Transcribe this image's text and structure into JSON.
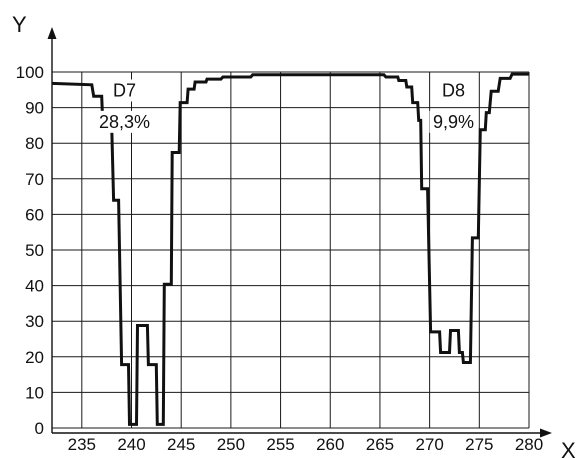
{
  "chart_data": {
    "type": "line",
    "xlabel": "X",
    "ylabel": "Y",
    "xlim": [
      232,
      280
    ],
    "ylim": [
      0,
      100
    ],
    "x_ticks": [
      235,
      240,
      245,
      250,
      255,
      260,
      265,
      270,
      275,
      280
    ],
    "y_ticks": [
      0,
      10,
      20,
      30,
      40,
      50,
      60,
      70,
      80,
      90,
      100
    ],
    "grid": true,
    "line_color": "#111111",
    "series": [
      {
        "points": [
          [
            232,
            96.8
          ],
          [
            236,
            96.4
          ],
          [
            236.2,
            93.2
          ],
          [
            237,
            93.2
          ],
          [
            237.1,
            86
          ],
          [
            238,
            86
          ],
          [
            238.2,
            64
          ],
          [
            238.7,
            64
          ],
          [
            239,
            17.8
          ],
          [
            239.7,
            17.8
          ],
          [
            239.8,
            1
          ],
          [
            240.5,
            1
          ],
          [
            240.6,
            28.8
          ],
          [
            241.6,
            28.8
          ],
          [
            241.7,
            17.8
          ],
          [
            242.5,
            17.8
          ],
          [
            242.6,
            1
          ],
          [
            243.2,
            1
          ],
          [
            243.3,
            40.4
          ],
          [
            244,
            40.4
          ],
          [
            244.1,
            77.4
          ],
          [
            244.8,
            77.4
          ],
          [
            244.9,
            91.4
          ],
          [
            245.6,
            91.4
          ],
          [
            245.7,
            95.2
          ],
          [
            246.3,
            95.2
          ],
          [
            246.4,
            97.2
          ],
          [
            247.5,
            97.2
          ],
          [
            247.6,
            98
          ],
          [
            249,
            98
          ],
          [
            249.2,
            98.6
          ],
          [
            252,
            98.6
          ],
          [
            252.2,
            99.2
          ],
          [
            265.4,
            99.2
          ],
          [
            265.6,
            98.6
          ],
          [
            266.8,
            98.6
          ],
          [
            266.9,
            97.6
          ],
          [
            267.6,
            97.6
          ],
          [
            267.7,
            95.8
          ],
          [
            268.2,
            95.8
          ],
          [
            268.3,
            91.4
          ],
          [
            268.8,
            91.4
          ],
          [
            268.9,
            86.4
          ],
          [
            269.1,
            86.4
          ],
          [
            269.2,
            67.2
          ],
          [
            269.8,
            67.2
          ],
          [
            270.1,
            27
          ],
          [
            271,
            27
          ],
          [
            271.1,
            21.2
          ],
          [
            272,
            21.2
          ],
          [
            272.1,
            27.4
          ],
          [
            272.9,
            27.4
          ],
          [
            273,
            21.2
          ],
          [
            273.3,
            21.2
          ],
          [
            273.4,
            18.4
          ],
          [
            274.1,
            18.4
          ],
          [
            274.3,
            53.4
          ],
          [
            274.9,
            53.4
          ],
          [
            275.1,
            83.8
          ],
          [
            275.6,
            83.8
          ],
          [
            275.7,
            88.6
          ],
          [
            276,
            88.6
          ],
          [
            276.2,
            94.6
          ],
          [
            276.9,
            94.6
          ],
          [
            277.1,
            98.2
          ],
          [
            278.1,
            98.2
          ],
          [
            278.3,
            99.4
          ],
          [
            280,
            99.4
          ]
        ]
      }
    ],
    "annotations": [
      {
        "x": 239.3,
        "y": 93.4,
        "text": "D7"
      },
      {
        "x": 239.3,
        "y": 84.6,
        "text": "28,3%"
      },
      {
        "x": 272.4,
        "y": 93.4,
        "text": "D8"
      },
      {
        "x": 272.4,
        "y": 84.6,
        "text": "9,9%"
      }
    ]
  }
}
